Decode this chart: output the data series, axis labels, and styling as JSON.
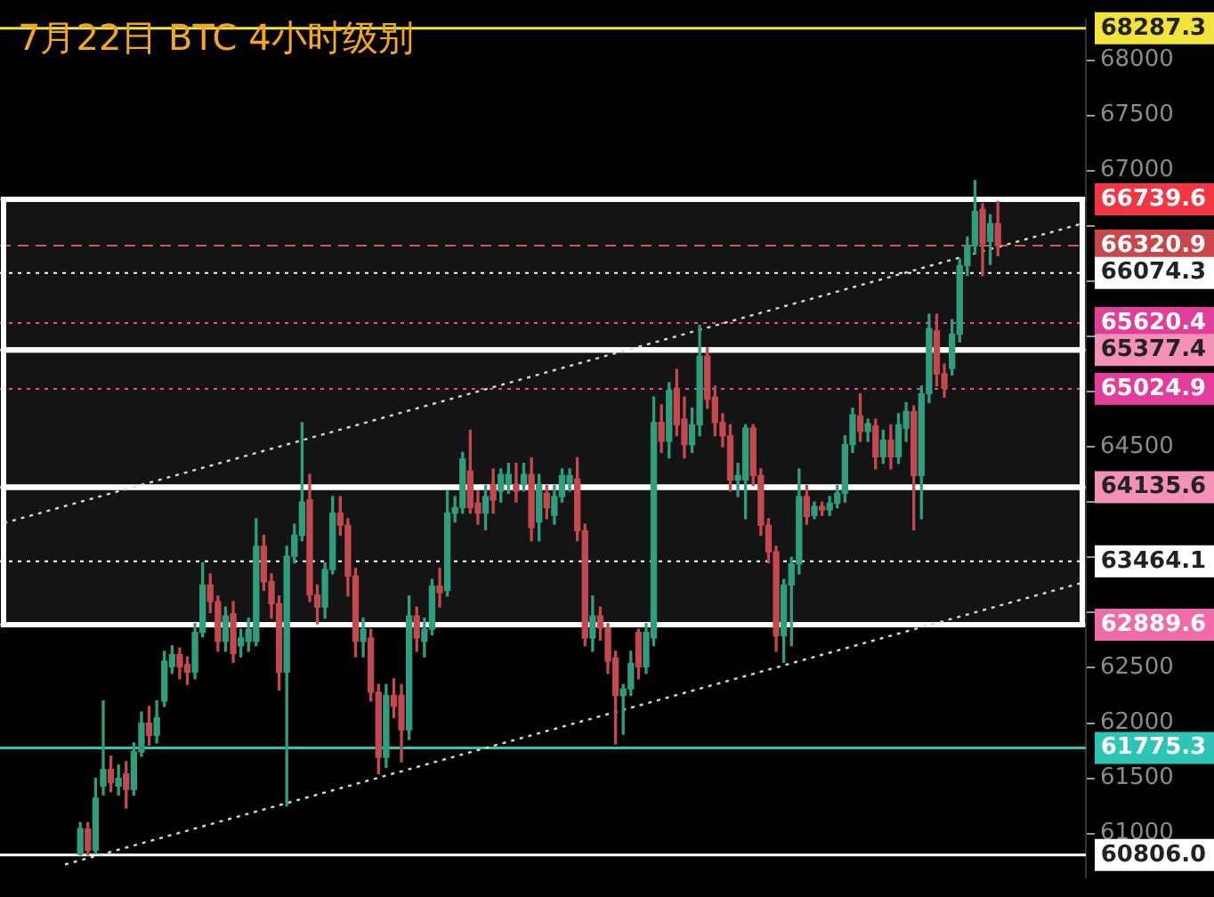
{
  "chart_data": {
    "type": "candlestick",
    "title": "7月22日 BTC 4小时级别",
    "categories": [
      null,
      null,
      null,
      null,
      null,
      null,
      null,
      null,
      null,
      null,
      null,
      null,
      null,
      null,
      null,
      null,
      null,
      null,
      null,
      null,
      null,
      null,
      null,
      null,
      null,
      null,
      null,
      null,
      null,
      null,
      null,
      null,
      null,
      null,
      null,
      null,
      null,
      null,
      null,
      null,
      null,
      null,
      null,
      null,
      null,
      null,
      null,
      null,
      null,
      null,
      null,
      null,
      null,
      null,
      null,
      null,
      null,
      null,
      null,
      null,
      null,
      null,
      null,
      null,
      null,
      null,
      null,
      null,
      null,
      null,
      null,
      null,
      null,
      null,
      null,
      null,
      null,
      null,
      null,
      null,
      null,
      null,
      null,
      null,
      null,
      null,
      null,
      null,
      null,
      null,
      null,
      null,
      null,
      null,
      null,
      null,
      null,
      null,
      null,
      null,
      null,
      null,
      null,
      null,
      null,
      null,
      null,
      null,
      null,
      null,
      null,
      null,
      null,
      null,
      null,
      null,
      null,
      null,
      null,
      null,
      null,
      null,
      null,
      null,
      null,
      null,
      null,
      null,
      null,
      null,
      null,
      null,
      null,
      null,
      null,
      null,
      null,
      null,
      null,
      null,
      null,
      null
    ],
    "ohlc": [
      null,
      null,
      null,
      null,
      null,
      null,
      null,
      null,
      null,
      null,
      [
        60813,
        61100,
        60806,
        61044
      ],
      [
        61040,
        61100,
        60806,
        60850
      ],
      [
        60850,
        61500,
        60820,
        61320
      ],
      [
        61430,
        62200,
        61350,
        61580
      ],
      [
        61580,
        61700,
        61380,
        61460
      ],
      [
        61430,
        61620,
        61350,
        61500
      ],
      [
        61540,
        61650,
        61230,
        61400
      ],
      [
        61400,
        61820,
        61350,
        61740
      ],
      [
        61740,
        62100,
        61700,
        62000
      ],
      [
        62000,
        62150,
        61800,
        61890
      ],
      [
        61890,
        62200,
        61820,
        62050
      ],
      [
        62200,
        62650,
        62150,
        62560
      ],
      [
        62510,
        62700,
        62450,
        62620
      ],
      [
        62620,
        62680,
        62400,
        62510
      ],
      [
        62530,
        62600,
        62350,
        62460
      ],
      [
        62460,
        62900,
        62400,
        62820
      ],
      [
        62820,
        63450,
        62780,
        63250
      ],
      [
        63250,
        63350,
        63000,
        63100
      ],
      [
        63100,
        63150,
        62650,
        62740
      ],
      [
        62740,
        63050,
        62650,
        62970
      ],
      [
        62990,
        63100,
        62550,
        62630
      ],
      [
        62700,
        62850,
        62600,
        62770
      ],
      [
        62740,
        62950,
        62650,
        62850
      ],
      [
        62740,
        63850,
        62700,
        63600
      ],
      [
        63600,
        63700,
        63200,
        63280
      ],
      [
        63280,
        63350,
        62950,
        63080
      ],
      [
        63080,
        63150,
        62300,
        62460
      ],
      [
        62460,
        63600,
        61250,
        63510
      ],
      [
        63510,
        63800,
        63450,
        63700
      ],
      [
        63700,
        64720,
        63650,
        64000
      ],
      [
        64020,
        64250,
        63100,
        63160
      ],
      [
        63160,
        63250,
        62900,
        63050
      ],
      [
        63050,
        63450,
        62950,
        63390
      ],
      [
        63390,
        64050,
        63350,
        63900
      ],
      [
        63900,
        64050,
        63700,
        63790
      ],
      [
        63790,
        63850,
        63150,
        63330
      ],
      [
        63330,
        63400,
        62600,
        62740
      ],
      [
        62740,
        62950,
        62600,
        62850
      ],
      [
        62770,
        62850,
        62200,
        62280
      ],
      [
        62280,
        62350,
        61540,
        61690
      ],
      [
        61690,
        62350,
        61600,
        62250
      ],
      [
        62250,
        62400,
        62050,
        62150
      ],
      [
        62250,
        62350,
        61650,
        61940
      ],
      [
        61940,
        63150,
        61850,
        62970
      ],
      [
        62970,
        63050,
        62650,
        62770
      ],
      [
        62740,
        62950,
        62600,
        62850
      ],
      [
        62850,
        63300,
        62800,
        63240
      ],
      [
        63240,
        63400,
        63050,
        63180
      ],
      [
        63200,
        64100,
        63150,
        63900
      ],
      [
        63900,
        64050,
        63820,
        63950
      ],
      [
        63950,
        64450,
        63900,
        64390
      ],
      [
        64280,
        64650,
        63900,
        63950
      ],
      [
        63990,
        64100,
        63800,
        63900
      ],
      [
        63900,
        64150,
        63750,
        64050
      ],
      [
        64160,
        64300,
        63900,
        64020
      ],
      [
        64100,
        64300,
        64000,
        64250
      ],
      [
        64160,
        64350,
        64080,
        64250
      ],
      [
        64160,
        64350,
        64000,
        64100
      ],
      [
        64160,
        64350,
        64100,
        64250
      ],
      [
        64250,
        64400,
        63650,
        63770
      ],
      [
        63820,
        64250,
        63650,
        64160
      ],
      [
        64080,
        64150,
        63850,
        63950
      ],
      [
        63880,
        64150,
        63800,
        64050
      ],
      [
        64050,
        64300,
        64000,
        64240
      ],
      [
        64170,
        64300,
        64100,
        64240
      ],
      [
        64210,
        64400,
        63650,
        63740
      ],
      [
        63740,
        63800,
        62700,
        62770
      ],
      [
        62770,
        63150,
        62650,
        62970
      ],
      [
        62970,
        63050,
        62750,
        62860
      ],
      [
        62860,
        62900,
        62450,
        62560
      ],
      [
        62590,
        62650,
        61810,
        62250
      ],
      [
        62250,
        62350,
        61900,
        62310
      ],
      [
        62310,
        62650,
        62250,
        62540
      ],
      [
        62820,
        62850,
        62400,
        62510
      ],
      [
        62510,
        62900,
        62450,
        62820
      ],
      [
        62770,
        64950,
        62700,
        64720
      ],
      [
        64720,
        64880,
        64450,
        64550
      ],
      [
        64550,
        65080,
        64400,
        65010
      ],
      [
        65030,
        65200,
        64600,
        64700
      ],
      [
        64750,
        64950,
        64400,
        64520
      ],
      [
        64520,
        64850,
        64450,
        64700
      ],
      [
        64700,
        65600,
        64600,
        65320
      ],
      [
        65320,
        65400,
        64850,
        64930
      ],
      [
        64950,
        65050,
        64600,
        64720
      ],
      [
        64720,
        64800,
        64500,
        64600
      ],
      [
        64600,
        64700,
        64100,
        64200
      ],
      [
        64200,
        64350,
        64050,
        64240
      ],
      [
        64200,
        64700,
        63850,
        64670
      ],
      [
        64670,
        64700,
        64150,
        64240
      ],
      [
        64240,
        64300,
        63700,
        63790
      ],
      [
        63790,
        63850,
        63450,
        63550
      ],
      [
        63550,
        63600,
        62650,
        62790
      ],
      [
        62790,
        63300,
        62550,
        63250
      ],
      [
        63250,
        63500,
        62700,
        63440
      ],
      [
        63440,
        64300,
        63350,
        64050
      ],
      [
        64050,
        64150,
        63800,
        63870
      ],
      [
        63880,
        64000,
        63850,
        63960
      ],
      [
        63960,
        64000,
        63880,
        63930
      ],
      [
        63930,
        64050,
        63880,
        63990
      ],
      [
        63990,
        64150,
        63950,
        64080
      ],
      [
        64080,
        64600,
        64000,
        64520
      ],
      [
        64520,
        64850,
        64450,
        64790
      ],
      [
        64780,
        64980,
        64550,
        64640
      ],
      [
        64640,
        64750,
        64550,
        64710
      ],
      [
        64690,
        64750,
        64300,
        64410
      ],
      [
        64410,
        64650,
        64350,
        64560
      ],
      [
        64560,
        64700,
        64300,
        64410
      ],
      [
        64410,
        64800,
        64350,
        64700
      ],
      [
        64670,
        64900,
        64550,
        64820
      ],
      [
        64820,
        64870,
        63750,
        64240
      ],
      [
        64240,
        65050,
        63850,
        64980
      ],
      [
        64980,
        65700,
        64900,
        65570
      ],
      [
        65550,
        65700,
        65050,
        65160
      ],
      [
        65160,
        65250,
        64950,
        65030
      ],
      [
        65210,
        65650,
        65150,
        65520
      ],
      [
        65520,
        66200,
        65450,
        66140
      ],
      [
        66140,
        66400,
        66050,
        66320
      ],
      [
        66320,
        66910,
        66250,
        66630
      ],
      [
        66650,
        66700,
        66050,
        66340
      ],
      [
        66360,
        66600,
        66150,
        66520
      ],
      [
        66520,
        66720,
        66230,
        66320
      ],
      null,
      null,
      null,
      null,
      null,
      null,
      null,
      null,
      null,
      null,
      null
    ],
    "series": [
      {
        "type": "line",
        "color": "#d8d8d8",
        "line_style": "dotted",
        "values": [
          63810,
          null,
          null,
          null,
          null,
          null,
          null,
          null,
          null,
          null,
          null,
          null,
          null,
          null,
          null,
          null,
          null,
          null,
          null,
          null,
          null,
          null,
          null,
          null,
          null,
          null,
          null,
          null,
          null,
          null,
          null,
          null,
          null,
          null,
          null,
          null,
          null,
          null,
          null,
          null,
          null,
          null,
          null,
          null,
          null,
          null,
          null,
          null,
          null,
          null,
          null,
          null,
          null,
          null,
          null,
          null,
          null,
          null,
          null,
          null,
          null,
          null,
          null,
          null,
          null,
          null,
          null,
          null,
          null,
          null,
          null,
          null,
          null,
          null,
          null,
          null,
          null,
          null,
          null,
          null,
          null,
          null,
          null,
          null,
          null,
          null,
          null,
          null,
          null,
          null,
          null,
          null,
          null,
          null,
          null,
          null,
          null,
          null,
          null,
          null,
          null,
          null,
          null,
          null,
          null,
          null,
          null,
          null,
          null,
          null,
          null,
          null,
          null,
          null,
          null,
          null,
          null,
          null,
          null,
          null,
          null,
          null,
          null,
          null,
          null,
          null,
          null,
          null,
          null,
          null,
          null,
          null,
          null,
          null,
          null,
          null,
          null,
          null,
          null,
          null,
          null,
          66520
        ]
      },
      {
        "type": "line",
        "color": "#d8d8d8",
        "line_style": "dotted",
        "values": [
          null,
          null,
          null,
          null,
          null,
          null,
          null,
          null,
          60720,
          null,
          null,
          null,
          null,
          null,
          null,
          null,
          null,
          null,
          null,
          null,
          null,
          null,
          null,
          null,
          null,
          null,
          null,
          null,
          null,
          null,
          null,
          null,
          null,
          null,
          null,
          null,
          null,
          null,
          null,
          null,
          null,
          null,
          null,
          null,
          null,
          null,
          null,
          null,
          null,
          null,
          null,
          null,
          null,
          null,
          null,
          null,
          null,
          null,
          null,
          null,
          null,
          null,
          null,
          null,
          null,
          null,
          null,
          null,
          null,
          null,
          null,
          null,
          null,
          null,
          null,
          null,
          null,
          null,
          null,
          null,
          null,
          null,
          null,
          null,
          null,
          null,
          null,
          null,
          null,
          null,
          null,
          null,
          null,
          null,
          null,
          null,
          null,
          null,
          null,
          null,
          null,
          null,
          null,
          null,
          null,
          null,
          null,
          null,
          null,
          null,
          null,
          null,
          null,
          null,
          null,
          null,
          null,
          null,
          null,
          null,
          null,
          null,
          null,
          null,
          null,
          null,
          null,
          null,
          null,
          null,
          null,
          null,
          null,
          null,
          null,
          null,
          null,
          null,
          null,
          null,
          null,
          63270
        ]
      }
    ],
    "ylim": [
      60600,
      68370
    ],
    "yticks": [
      61000,
      61500,
      62000,
      62500,
      {
        "value": 63000,
        "label": null
      },
      {
        "value": 63500,
        "label": null
      },
      {
        "value": 64000,
        "label": null
      },
      64500,
      {
        "value": 65000,
        "label": null
      },
      {
        "value": 65500,
        "label": null
      },
      {
        "value": 66000,
        "label": null
      },
      {
        "value": 66500,
        "label": null
      },
      67000,
      67500,
      68000
    ],
    "tick_labels": "y",
    "ref_lines": [
      {
        "axis": "y",
        "value": 68287.3,
        "label": "68287.3",
        "color": "#f2e23c",
        "line_style": "solid"
      },
      {
        "axis": "y",
        "value": 66739.6,
        "label": "66739.6",
        "color": "#f23645",
        "line_style": "solid"
      },
      {
        "axis": "y",
        "value": 66320.9,
        "label": "66320.9",
        "color": "#c9474a",
        "line_style": "dashed"
      },
      {
        "axis": "y",
        "value": 66074.3,
        "label": "66074.3",
        "color": "#ffffff",
        "line_style": "dotted"
      },
      {
        "axis": "y",
        "value": 65620.4,
        "label": "65620.4",
        "color": "#e23d9a",
        "line_style": "dotted"
      },
      {
        "axis": "y",
        "value": 65377.4,
        "label": "65377.4",
        "color": "#f48fb8",
        "line_style": "solid"
      },
      {
        "axis": "y",
        "value": 65024.9,
        "label": "65024.9",
        "color": "#e23d9a",
        "line_style": "dotted"
      },
      {
        "axis": "y",
        "value": 64135.6,
        "label": "64135.6",
        "color": "#f48fb8",
        "line_style": "solid"
      },
      {
        "axis": "y",
        "value": 63464.1,
        "label": "63464.1",
        "color": "#ffffff",
        "line_style": "dotted"
      },
      {
        "axis": "y",
        "value": 62889.6,
        "label": "62889.6",
        "color": "#f06aa8",
        "line_style": "solid"
      },
      {
        "axis": "y",
        "value": 61775.3,
        "label": "61775.3",
        "color": "#2ec4b6",
        "line_style": "solid"
      },
      {
        "axis": "y",
        "value": 60806.0,
        "label": "60806.0",
        "color": "#ffffff",
        "line_style": "solid"
      }
    ],
    "bands": [
      {
        "axis": "y",
        "from": 62889.6,
        "to": 64135.6,
        "color": "#ffffff"
      },
      {
        "axis": "y",
        "from": 64135.6,
        "to": 65377.4,
        "color": "#ffffff"
      },
      {
        "axis": "y",
        "from": 65377.4,
        "to": 66739.6,
        "color": "#ffffff"
      }
    ]
  }
}
